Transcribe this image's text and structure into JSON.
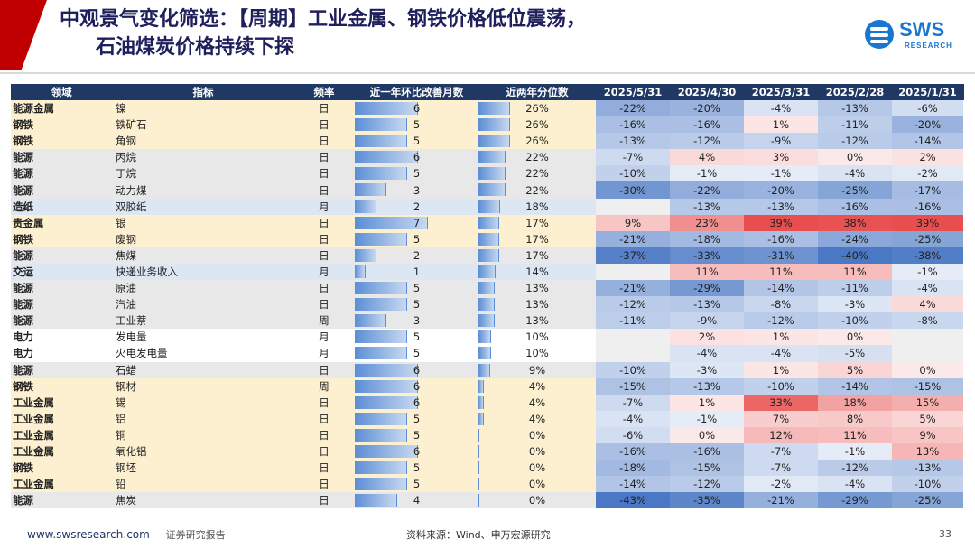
{
  "title": {
    "line1": "中观景气变化筛选：【周期】工业金属、钢铁价格低位震荡，",
    "line2": "石油煤炭价格持续下探"
  },
  "logo": {
    "text": "SWS",
    "sub": "RESEARCH"
  },
  "table": {
    "headers": [
      "领域",
      "指标",
      "频率",
      "近一年环比改善月数",
      "近两年分位数",
      "2025/5/31",
      "2025/4/30",
      "2025/3/31",
      "2025/2/28",
      "2025/1/31"
    ],
    "max_months": 12,
    "rows": [
      {
        "domain": "能源金属",
        "indicator": "镍",
        "freq": "日",
        "months": 6,
        "pct": "26%",
        "vals": [
          "-22%",
          "-20%",
          "-4%",
          "-13%",
          "-6%"
        ],
        "band": "band"
      },
      {
        "domain": "钢铁",
        "indicator": "铁矿石",
        "freq": "日",
        "months": 5,
        "pct": "26%",
        "vals": [
          "-16%",
          "-16%",
          "1%",
          "-11%",
          "-20%"
        ],
        "band": "band"
      },
      {
        "domain": "钢铁",
        "indicator": "角钢",
        "freq": "日",
        "months": 5,
        "pct": "26%",
        "vals": [
          "-13%",
          "-12%",
          "-9%",
          "-12%",
          "-14%"
        ],
        "band": "band"
      },
      {
        "domain": "能源",
        "indicator": "丙烷",
        "freq": "日",
        "months": 6,
        "pct": "22%",
        "vals": [
          "-7%",
          "4%",
          "3%",
          "0%",
          "2%"
        ],
        "band": "grey"
      },
      {
        "domain": "能源",
        "indicator": "丁烷",
        "freq": "日",
        "months": 5,
        "pct": "22%",
        "vals": [
          "-10%",
          "-1%",
          "-1%",
          "-4%",
          "-2%"
        ],
        "band": "grey"
      },
      {
        "domain": "能源",
        "indicator": "动力煤",
        "freq": "日",
        "months": 3,
        "pct": "22%",
        "vals": [
          "-30%",
          "-22%",
          "-20%",
          "-25%",
          "-17%"
        ],
        "band": "grey"
      },
      {
        "domain": "造纸",
        "indicator": "双胶纸",
        "freq": "月",
        "months": 2,
        "pct": "18%",
        "vals": [
          "",
          "-13%",
          "-13%",
          "-16%",
          "-16%"
        ],
        "band": "blue"
      },
      {
        "domain": "贵金属",
        "indicator": "银",
        "freq": "日",
        "months": 7,
        "pct": "17%",
        "vals": [
          "9%",
          "23%",
          "39%",
          "38%",
          "39%"
        ],
        "band": "band"
      },
      {
        "domain": "钢铁",
        "indicator": "废钢",
        "freq": "日",
        "months": 5,
        "pct": "17%",
        "vals": [
          "-21%",
          "-18%",
          "-16%",
          "-24%",
          "-25%"
        ],
        "band": "band"
      },
      {
        "domain": "能源",
        "indicator": "焦煤",
        "freq": "日",
        "months": 2,
        "pct": "17%",
        "vals": [
          "-37%",
          "-33%",
          "-31%",
          "-40%",
          "-38%"
        ],
        "band": "grey"
      },
      {
        "domain": "交运",
        "indicator": "快递业务收入",
        "freq": "月",
        "months": 1,
        "pct": "14%",
        "vals": [
          "",
          "11%",
          "11%",
          "11%",
          "-1%"
        ],
        "band": "blue"
      },
      {
        "domain": "能源",
        "indicator": "原油",
        "freq": "日",
        "months": 5,
        "pct": "13%",
        "vals": [
          "-21%",
          "-29%",
          "-14%",
          "-11%",
          "-4%"
        ],
        "band": "grey"
      },
      {
        "domain": "能源",
        "indicator": "汽油",
        "freq": "日",
        "months": 5,
        "pct": "13%",
        "vals": [
          "-12%",
          "-13%",
          "-8%",
          "-3%",
          "4%"
        ],
        "band": "grey"
      },
      {
        "domain": "能源",
        "indicator": "工业萘",
        "freq": "周",
        "months": 3,
        "pct": "13%",
        "vals": [
          "-11%",
          "-9%",
          "-12%",
          "-10%",
          "-8%"
        ],
        "band": "grey"
      },
      {
        "domain": "电力",
        "indicator": "发电量",
        "freq": "月",
        "months": 5,
        "pct": "10%",
        "vals": [
          "",
          "2%",
          "1%",
          "0%",
          ""
        ],
        "band": "white"
      },
      {
        "domain": "电力",
        "indicator": "火电发电量",
        "freq": "月",
        "months": 5,
        "pct": "10%",
        "vals": [
          "",
          "-4%",
          "-4%",
          "-5%",
          ""
        ],
        "band": "white"
      },
      {
        "domain": "能源",
        "indicator": "石蜡",
        "freq": "日",
        "months": 6,
        "pct": "9%",
        "vals": [
          "-10%",
          "-3%",
          "1%",
          "5%",
          "0%"
        ],
        "band": "grey"
      },
      {
        "domain": "钢铁",
        "indicator": "钢材",
        "freq": "周",
        "months": 6,
        "pct": "4%",
        "vals": [
          "-15%",
          "-13%",
          "-10%",
          "-14%",
          "-15%"
        ],
        "band": "band"
      },
      {
        "domain": "工业金属",
        "indicator": "锡",
        "freq": "日",
        "months": 6,
        "pct": "4%",
        "vals": [
          "-7%",
          "1%",
          "33%",
          "18%",
          "15%"
        ],
        "band": "band"
      },
      {
        "domain": "工业金属",
        "indicator": "铝",
        "freq": "日",
        "months": 5,
        "pct": "4%",
        "vals": [
          "-4%",
          "-1%",
          "7%",
          "8%",
          "5%"
        ],
        "band": "band"
      },
      {
        "domain": "工业金属",
        "indicator": "铜",
        "freq": "日",
        "months": 5,
        "pct": "0%",
        "vals": [
          "-6%",
          "0%",
          "12%",
          "11%",
          "9%"
        ],
        "band": "band"
      },
      {
        "domain": "工业金属",
        "indicator": "氧化铝",
        "freq": "日",
        "months": 6,
        "pct": "0%",
        "vals": [
          "-16%",
          "-16%",
          "-7%",
          "-1%",
          "13%"
        ],
        "band": "band"
      },
      {
        "domain": "钢铁",
        "indicator": "钢坯",
        "freq": "日",
        "months": 5,
        "pct": "0%",
        "vals": [
          "-18%",
          "-15%",
          "-7%",
          "-12%",
          "-13%"
        ],
        "band": "band"
      },
      {
        "domain": "工业金属",
        "indicator": "铅",
        "freq": "日",
        "months": 5,
        "pct": "0%",
        "vals": [
          "-14%",
          "-12%",
          "-2%",
          "-4%",
          "-10%"
        ],
        "band": "band"
      },
      {
        "domain": "能源",
        "indicator": "焦炭",
        "freq": "日",
        "months": 4,
        "pct": "0%",
        "vals": [
          "-43%",
          "-35%",
          "-21%",
          "-29%",
          "-25%"
        ],
        "band": "grey"
      }
    ]
  },
  "colors": {
    "header_bg": "#1f3864",
    "pos": "#e84a4a",
    "neg": "#4a78c4",
    "bar": "#5b8ed6"
  },
  "footer": {
    "site": "www.swsresearch.com",
    "sub": "证券研究报告",
    "source": "资料来源：Wind、申万宏源研究",
    "page": "33"
  }
}
